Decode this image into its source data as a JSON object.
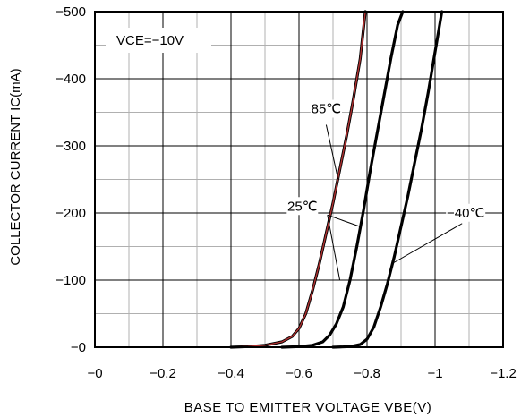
{
  "chart_data": {
    "type": "line",
    "xlabel": "BASE TO EMITTER VOLTAGE VBE(V)",
    "ylabel": "COLLECTOR CURRENT IC(mA)",
    "xlim": [
      0,
      -1.2
    ],
    "ylim": [
      0,
      -500
    ],
    "x_ticks": [
      0,
      -0.2,
      -0.4,
      -0.6,
      -0.8,
      -1.0,
      -1.2
    ],
    "x_tick_labels": [
      "−0",
      "−0.2",
      "−0.4",
      "−0.6",
      "−0.8",
      "−1",
      "−1.2"
    ],
    "y_ticks": [
      0,
      -100,
      -200,
      -300,
      -400,
      -500
    ],
    "y_tick_labels": [
      "−0",
      "−100",
      "−200",
      "−300",
      "−400",
      "−500"
    ],
    "grid": true,
    "condition_label": "VCE=−10V",
    "series": [
      {
        "name": "85℃",
        "color": "#b03030",
        "x": [
          -0.4,
          -0.45,
          -0.5,
          -0.55,
          -0.58,
          -0.6,
          -0.62,
          -0.64,
          -0.66,
          -0.68,
          -0.7,
          -0.72,
          -0.74,
          -0.76,
          -0.78,
          -0.795
        ],
        "y": [
          0,
          -1,
          -3,
          -8,
          -16,
          -28,
          -50,
          -85,
          -125,
          -170,
          -215,
          -265,
          -315,
          -370,
          -430,
          -500
        ]
      },
      {
        "name": "25℃",
        "color": "#000000",
        "x": [
          -0.55,
          -0.6,
          -0.64,
          -0.67,
          -0.69,
          -0.71,
          -0.73,
          -0.75,
          -0.77,
          -0.79,
          -0.81,
          -0.83,
          -0.85,
          -0.87,
          -0.89,
          -0.905
        ],
        "y": [
          0,
          -1,
          -3,
          -8,
          -18,
          -35,
          -60,
          -100,
          -150,
          -205,
          -265,
          -320,
          -375,
          -430,
          -480,
          -500
        ]
      },
      {
        "name": "−40℃",
        "color": "#000000",
        "x": [
          -0.7,
          -0.75,
          -0.78,
          -0.8,
          -0.82,
          -0.84,
          -0.86,
          -0.88,
          -0.9,
          -0.92,
          -0.94,
          -0.96,
          -0.98,
          -1.0,
          -1.02
        ],
        "y": [
          0,
          -1,
          -4,
          -12,
          -30,
          -60,
          -95,
          -135,
          -180,
          -225,
          -275,
          -325,
          -380,
          -440,
          -500
        ]
      }
    ],
    "annotations": [
      {
        "text": "85℃",
        "series": 0,
        "at": [
          -0.68,
          -350
        ],
        "point": [
          -0.715,
          -250
        ]
      },
      {
        "text": "25℃",
        "series": 1,
        "at": [
          -0.61,
          -205
        ],
        "point": [
          -0.778,
          -180
        ]
      },
      {
        "text": "−40℃",
        "series": 2,
        "at": [
          -1.09,
          -195
        ],
        "point": [
          -0.875,
          -125
        ]
      }
    ]
  }
}
